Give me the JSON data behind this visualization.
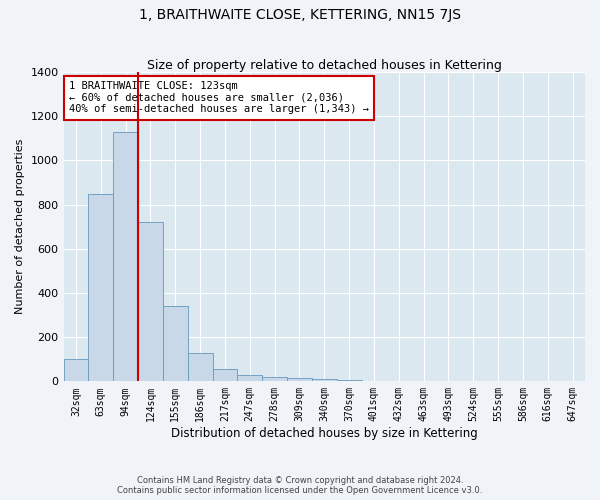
{
  "title": "1, BRAITHWAITE CLOSE, KETTERING, NN15 7JS",
  "subtitle": "Size of property relative to detached houses in Kettering",
  "xlabel": "Distribution of detached houses by size in Kettering",
  "ylabel": "Number of detached properties",
  "categories": [
    "32sqm",
    "63sqm",
    "94sqm",
    "124sqm",
    "155sqm",
    "186sqm",
    "217sqm",
    "247sqm",
    "278sqm",
    "309sqm",
    "340sqm",
    "370sqm",
    "401sqm",
    "432sqm",
    "463sqm",
    "493sqm",
    "524sqm",
    "555sqm",
    "586sqm",
    "616sqm",
    "647sqm"
  ],
  "values": [
    100,
    850,
    1130,
    720,
    340,
    130,
    55,
    30,
    20,
    15,
    10,
    5,
    3,
    2,
    1,
    1,
    0,
    0,
    0,
    0,
    0
  ],
  "bar_color": "#c8d8e8",
  "bar_edge_color": "#6699bb",
  "highlight_color": "#cc0000",
  "ylim": [
    0,
    1400
  ],
  "yticks": [
    0,
    200,
    400,
    600,
    800,
    1000,
    1200,
    1400
  ],
  "annotation_text": "1 BRAITHWAITE CLOSE: 123sqm\n← 60% of detached houses are smaller (2,036)\n40% of semi-detached houses are larger (1,343) →",
  "annotation_box_color": "#ffffff",
  "annotation_box_edge": "#cc0000",
  "footer_line1": "Contains HM Land Registry data © Crown copyright and database right 2024.",
  "footer_line2": "Contains public sector information licensed under the Open Government Licence v3.0.",
  "background_color": "#f0f4f8",
  "plot_background": "#dce8f0"
}
